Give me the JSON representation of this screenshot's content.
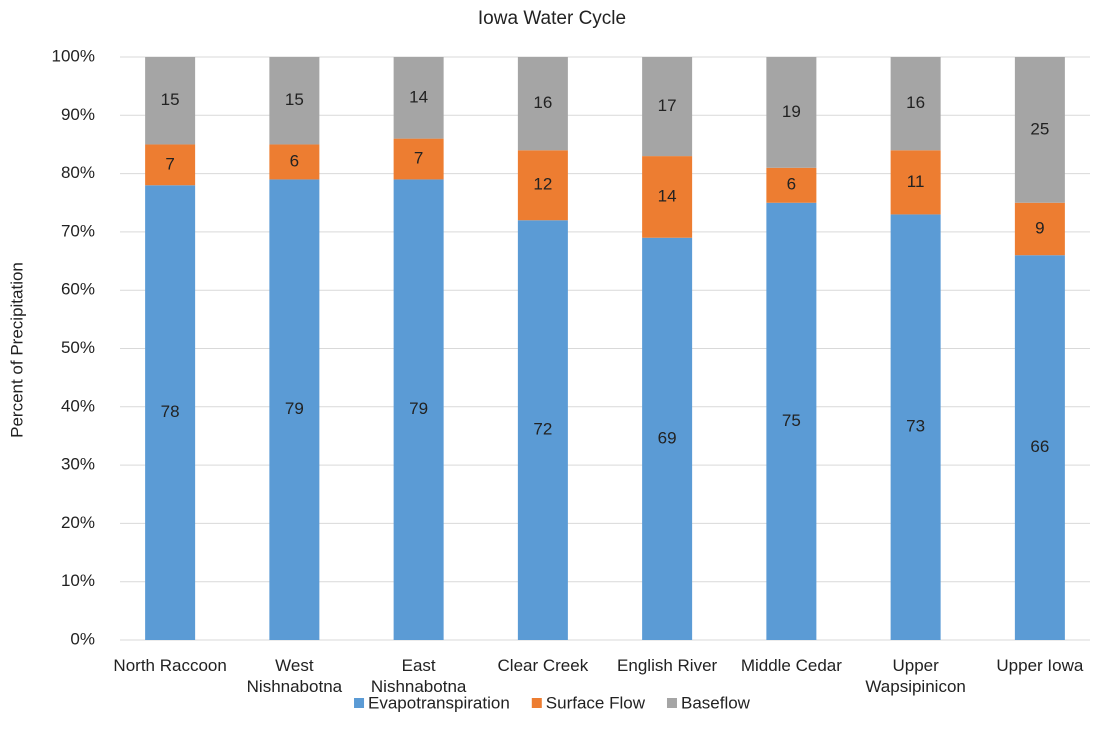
{
  "chart_data": {
    "type": "stacked_bar",
    "title": "Iowa Water Cycle",
    "y_label": "Percent of Precipitation",
    "categories": [
      "North Raccoon",
      "West Nishnabotna",
      "East Nishnabotna",
      "Clear Creek",
      "English River",
      "Middle Cedar",
      "Upper Wapsipinicon",
      "Upper Iowa"
    ],
    "series": [
      {
        "name": "Evapotranspiration",
        "color": "#5b9bd5",
        "values": [
          78,
          79,
          79,
          72,
          69,
          75,
          73,
          66
        ]
      },
      {
        "name": "Surface Flow",
        "color": "#ed7d31",
        "values": [
          7,
          6,
          7,
          12,
          14,
          6,
          11,
          9
        ]
      },
      {
        "name": "Baseflow",
        "color": "#a5a5a5",
        "values": [
          15,
          15,
          14,
          16,
          17,
          19,
          16,
          25
        ]
      }
    ],
    "ylim": [
      0,
      100
    ],
    "yticks": [
      {
        "value": 0,
        "label": "0%"
      },
      {
        "value": 10,
        "label": "10%"
      },
      {
        "value": 20,
        "label": "20%"
      },
      {
        "value": 30,
        "label": "30%"
      },
      {
        "value": 40,
        "label": "40%"
      },
      {
        "value": 50,
        "label": "50%"
      },
      {
        "value": 60,
        "label": "60%"
      },
      {
        "value": 70,
        "label": "70%"
      },
      {
        "value": 80,
        "label": "80%"
      },
      {
        "value": 90,
        "label": "90%"
      },
      {
        "value": 100,
        "label": "100%"
      }
    ],
    "grid": true,
    "legend": "bottom"
  }
}
